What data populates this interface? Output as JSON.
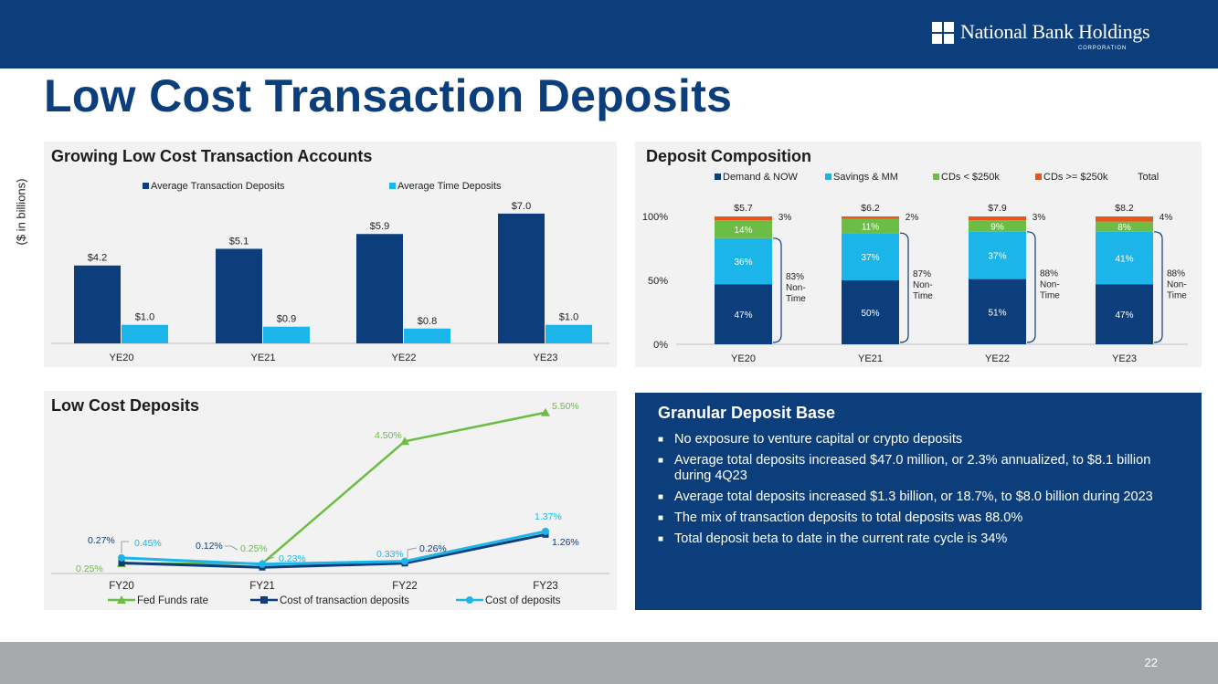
{
  "slide": {
    "title": "Low Cost Transaction Deposits",
    "units_label": "($ in billions)",
    "page_number": "22",
    "logo": {
      "name": "National Bank Holdings",
      "sub": "CORPORATION"
    }
  },
  "colors": {
    "navy": "#0c3e7b",
    "bar_dark": "#0c3e7b",
    "bar_light": "#1cb5ea",
    "green": "#6cbd45",
    "orange": "#e8561f",
    "panel_bg": "#f2f2f2",
    "footer": "#a7a9ac"
  },
  "info": {
    "title": "Granular Deposit Base",
    "bullets": [
      "No exposure to venture capital or crypto deposits",
      "Average total deposits increased $47.0 million, or 2.3% annualized, to $8.1 billion during 4Q23",
      "Average total deposits increased $1.3 billion, or 18.7%, to $8.0 billion during 2023",
      "The mix of transaction deposits to total deposits was 88.0%",
      "Total deposit beta to date in the current rate cycle is 34%"
    ]
  },
  "chart_data": [
    {
      "type": "bar",
      "title": "Growing Low Cost Transaction Accounts",
      "categories": [
        "YE20",
        "YE21",
        "YE22",
        "YE23"
      ],
      "series": [
        {
          "name": "Average Transaction Deposits",
          "values": [
            4.2,
            5.1,
            5.9,
            7.0
          ],
          "labels": [
            "$4.2",
            "$5.1",
            "$5.9",
            "$7.0"
          ]
        },
        {
          "name": "Average Time Deposits",
          "values": [
            1.0,
            0.9,
            0.8,
            1.0
          ],
          "labels": [
            "$1.0",
            "$0.9",
            "$0.8",
            "$1.0"
          ]
        }
      ],
      "legend": "top",
      "grid": false
    },
    {
      "type": "bar",
      "stacked": true,
      "title": "Deposit Composition",
      "categories": [
        "YE20",
        "YE21",
        "YE22",
        "YE23"
      ],
      "series": [
        {
          "name": "Demand & NOW",
          "values": [
            47,
            50,
            51,
            47
          ],
          "labels": [
            "47%",
            "50%",
            "51%",
            "47%"
          ]
        },
        {
          "name": "Savings & MM",
          "values": [
            36,
            37,
            37,
            41
          ],
          "labels": [
            "36%",
            "37%",
            "37%",
            "41%"
          ]
        },
        {
          "name": "CDs < $250k",
          "values": [
            14,
            11,
            9,
            8
          ],
          "labels": [
            "14%",
            "11%",
            "9%",
            "8%"
          ]
        },
        {
          "name": "CDs >= $250k",
          "values": [
            3,
            2,
            3,
            4
          ],
          "labels": [
            "3%",
            "2%",
            "3%",
            "4%"
          ]
        },
        {
          "name": "Total",
          "values": [
            5.7,
            6.2,
            7.9,
            8.2
          ],
          "labels": [
            "$5.7",
            "$6.2",
            "$7.9",
            "$8.2"
          ]
        }
      ],
      "brackets": [
        [
          "83%",
          "Non-",
          "Time"
        ],
        [
          "87%",
          "Non-",
          "Time"
        ],
        [
          "88%",
          "Non-",
          "Time"
        ],
        [
          "88%",
          "Non-",
          "Time"
        ]
      ],
      "yticks": [
        "0%",
        "50%",
        "100%"
      ],
      "ylim": [
        0,
        100
      ],
      "legend": "top"
    },
    {
      "type": "line",
      "title": "Low Cost Deposits",
      "categories": [
        "FY20",
        "FY21",
        "FY22",
        "FY23"
      ],
      "series": [
        {
          "name": "Fed Funds rate",
          "values": [
            0.25,
            0.25,
            4.5,
            5.5
          ],
          "labels": [
            "0.25%",
            "0.25%",
            "4.50%",
            "5.50%"
          ]
        },
        {
          "name": "Cost of transaction deposits",
          "values": [
            0.27,
            0.12,
            0.26,
            1.26
          ],
          "labels": [
            "0.27%",
            "0.12%",
            "0.26%",
            "1.26%"
          ]
        },
        {
          "name": "Cost of deposits",
          "values": [
            0.45,
            0.23,
            0.33,
            1.37
          ],
          "labels": [
            "0.45%",
            "0.23%",
            "0.33%",
            "1.37%"
          ]
        }
      ],
      "legend": "bottom",
      "grid": false
    }
  ]
}
